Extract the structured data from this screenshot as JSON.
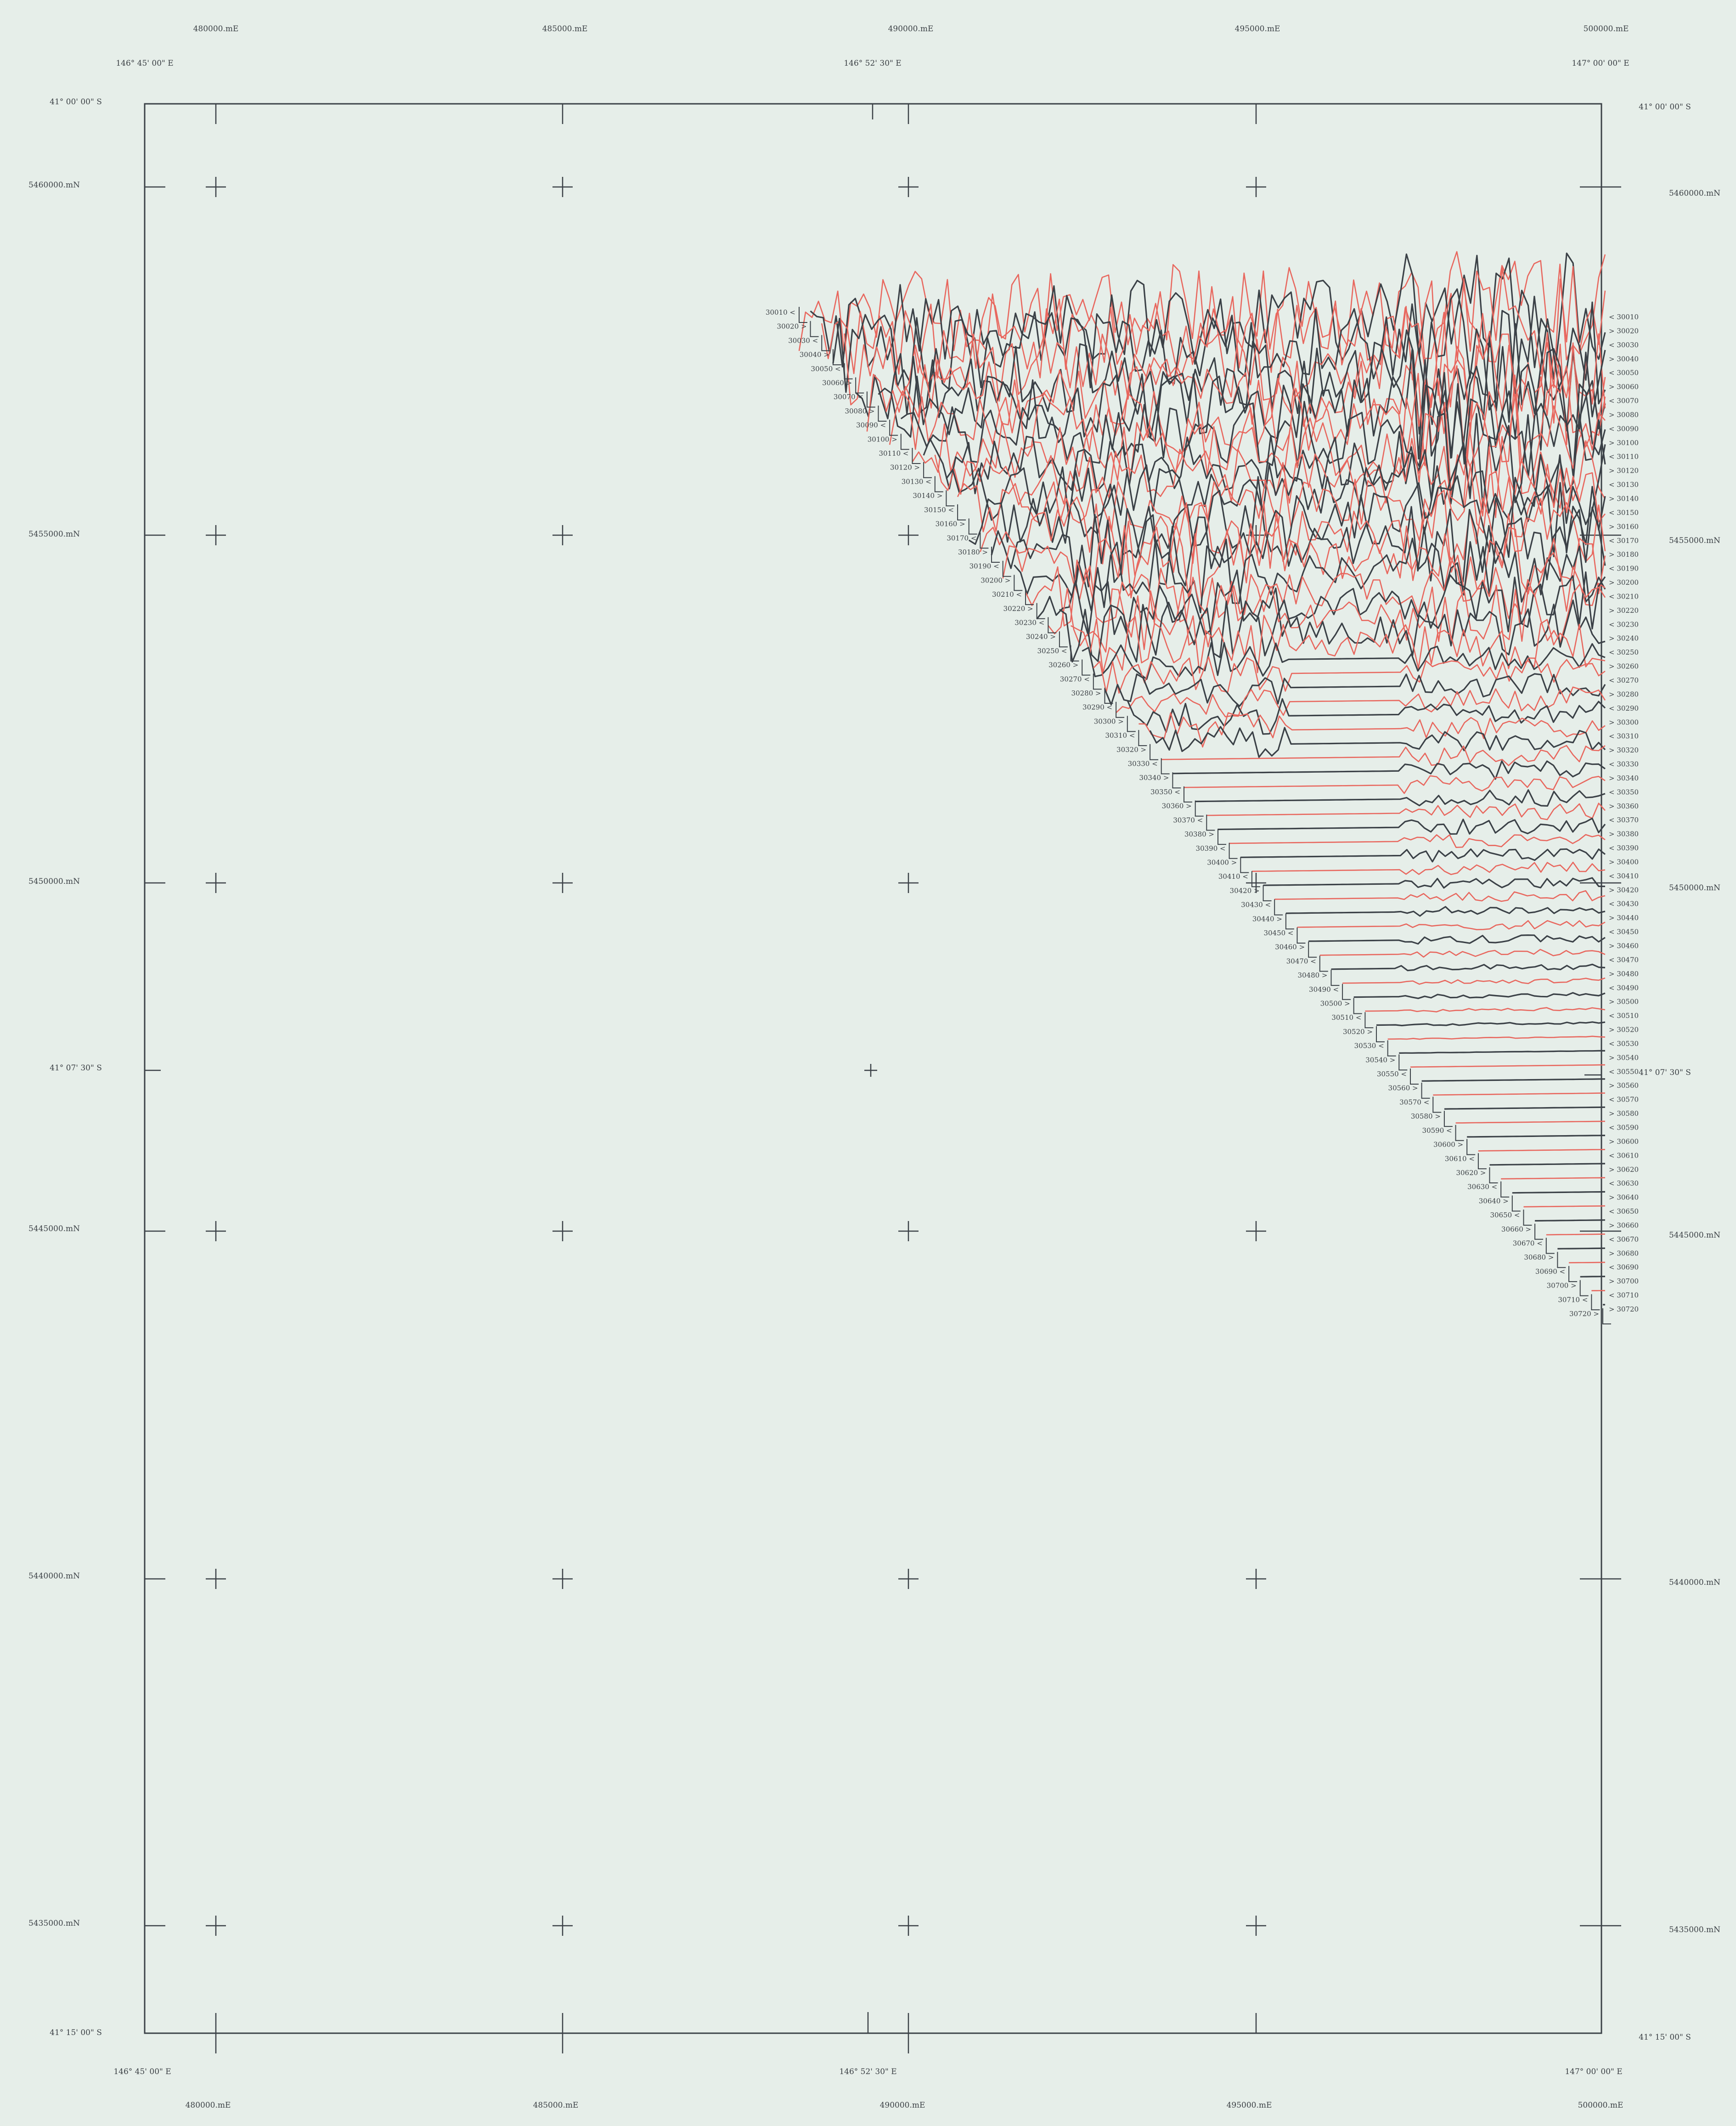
{
  "map": {
    "easting_labels": [
      "480000.mE",
      "485000.mE",
      "490000.mE",
      "495000.mE",
      "500000.mE"
    ],
    "northing_labels": [
      "5460000.mN",
      "5455000.mN",
      "5450000.mN",
      "5445000.mN",
      "5440000.mN",
      "5435000.mN"
    ],
    "longitude_labels": [
      "146° 45' 00\" E",
      "146° 52' 30\" E",
      "147° 00' 00\" E"
    ],
    "latitude_labels": [
      "41° 00' 00\" S",
      "41° 07' 30\" S",
      "41° 15' 00\" S"
    ],
    "line_numbers_left": [
      "30010",
      "30020",
      "30030",
      "30040",
      "30050",
      "30060",
      "30070",
      "30080",
      "30090",
      "30100",
      "30110",
      "30120",
      "30130",
      "30140",
      "30150",
      "30160",
      "30170",
      "30180",
      "30190",
      "30200",
      "30210",
      "30220",
      "30230",
      "30240",
      "30250",
      "30260",
      "30270",
      "30280",
      "30290",
      "30300",
      "30310",
      "30320",
      "30330",
      "30340",
      "30350",
      "30360",
      "30370",
      "30380",
      "30390",
      "30400",
      "30410",
      "30420",
      "30430",
      "30440",
      "30450",
      "30460",
      "30470",
      "30480",
      "30490",
      "30500",
      "30510",
      "30520",
      "30530",
      "30540",
      "30550",
      "30560",
      "30570",
      "30580",
      "30590",
      "30600",
      "30610",
      "30620",
      "30630",
      "30640",
      "30650",
      "30660",
      "30670",
      "30680",
      "30690",
      "30700",
      "30710",
      "30720"
    ],
    "line_numbers_right": [
      "30010",
      "30020",
      "30030",
      "30040",
      "30050",
      "30060",
      "30070",
      "30080",
      "30090",
      "30100",
      "30110",
      "30120",
      "30130",
      "30140",
      "30150",
      "30160",
      "30170",
      "30180",
      "30190",
      "30200",
      "30210",
      "30220",
      "30230",
      "30240",
      "30250",
      "30260",
      "30270",
      "30280",
      "30290",
      "30300",
      "30310",
      "30320",
      "30330",
      "30340",
      "30350",
      "30360",
      "30370",
      "30380",
      "30390",
      "30400",
      "30410",
      "30420",
      "30430",
      "30440",
      "30450",
      "30460",
      "30470",
      "30480",
      "30490",
      "30500",
      "30510",
      "30520",
      "30530",
      "30540",
      "30550",
      "30560",
      "30570",
      "30580",
      "30590",
      "30600",
      "30610",
      "30620",
      "30630",
      "30640",
      "30650",
      "30660",
      "30670",
      "30680",
      "30690",
      "30700",
      "30710",
      "30720"
    ],
    "profile_colors": {
      "black": "#3b4147",
      "red": "#e8675e"
    },
    "background_color": "#e6eee9"
  }
}
